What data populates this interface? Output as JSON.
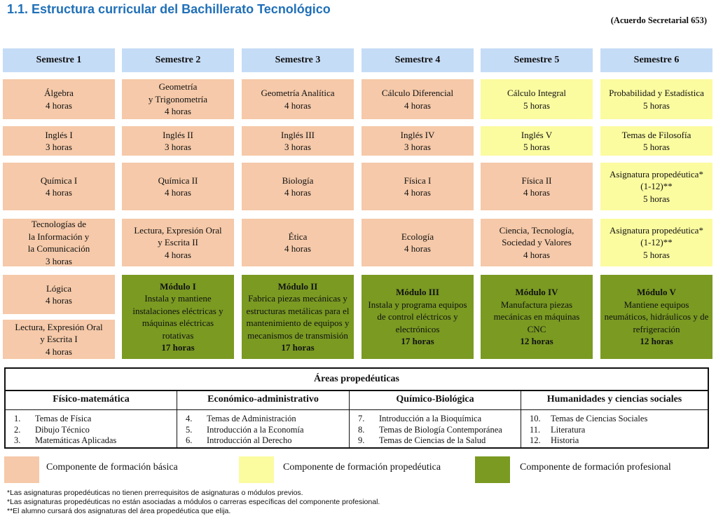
{
  "title": "1.1. Estructura curricular del Bachillerato Tecnológico",
  "agreement": "(Acuerdo Secretarial 653)",
  "colors": {
    "basic": "#f5c9a9",
    "propedeutic": "#fbfba0",
    "professional": "#7a9a22",
    "header": "#c5dcf6",
    "title": "#2070b8"
  },
  "semesters": [
    "Semestre 1",
    "Semestre 2",
    "Semestre 3",
    "Semestre 4",
    "Semestre 5",
    "Semestre 6"
  ],
  "courses": [
    [
      {
        "lines": [
          "Álgebra",
          "4 horas"
        ],
        "type": "basic"
      },
      {
        "lines": [
          "Inglés I",
          "3 horas"
        ],
        "type": "basic"
      },
      {
        "lines": [
          "Química I",
          "4 horas"
        ],
        "type": "basic"
      },
      {
        "lines": [
          "Tecnologías de",
          "la Información y",
          "la Comunicación",
          "3 horas"
        ],
        "type": "basic"
      },
      {
        "lines": [
          "Lógica",
          "4 horas"
        ],
        "type": "basic"
      },
      {
        "lines": [
          "Lectura, Expresión Oral",
          "y Escrita I",
          "4 horas"
        ],
        "type": "basic"
      }
    ],
    [
      {
        "lines": [
          "Geometría",
          "y Trigonometría",
          "4 horas"
        ],
        "type": "basic"
      },
      {
        "lines": [
          "Inglés II",
          "3 horas"
        ],
        "type": "basic"
      },
      {
        "lines": [
          "Química II",
          "4 horas"
        ],
        "type": "basic"
      },
      {
        "lines": [
          "Lectura, Expresión Oral",
          "y Escrita II",
          "4 horas"
        ],
        "type": "basic"
      }
    ],
    [
      {
        "lines": [
          "Geometría Analítica",
          "4 horas"
        ],
        "type": "basic"
      },
      {
        "lines": [
          "Inglés III",
          "3 horas"
        ],
        "type": "basic"
      },
      {
        "lines": [
          "Biología",
          "4 horas"
        ],
        "type": "basic"
      },
      {
        "lines": [
          "Ética",
          "4 horas"
        ],
        "type": "basic"
      }
    ],
    [
      {
        "lines": [
          "Cálculo Diferencial",
          "4 horas"
        ],
        "type": "basic"
      },
      {
        "lines": [
          "Inglés IV",
          "3 horas"
        ],
        "type": "basic"
      },
      {
        "lines": [
          "Física I",
          "4 horas"
        ],
        "type": "basic"
      },
      {
        "lines": [
          "Ecología",
          "4 horas"
        ],
        "type": "basic"
      }
    ],
    [
      {
        "lines": [
          "Cálculo Integral",
          "5 horas"
        ],
        "type": "prop"
      },
      {
        "lines": [
          "Inglés V",
          "5 horas"
        ],
        "type": "prop"
      },
      {
        "lines": [
          "Física II",
          "4 horas"
        ],
        "type": "basic"
      },
      {
        "lines": [
          "Ciencia, Tecnología,",
          "Sociedad y Valores",
          "4 horas"
        ],
        "type": "basic"
      }
    ],
    [
      {
        "lines": [
          "Probabilidad y Estadística",
          "5 horas"
        ],
        "type": "prop"
      },
      {
        "lines": [
          "Temas de Filosofía",
          "5 horas"
        ],
        "type": "prop"
      },
      {
        "lines": [
          "Asignatura propedéutica*",
          "(1-12)**",
          "5 horas"
        ],
        "type": "prop"
      },
      {
        "lines": [
          "Asignatura propedéutica*",
          "(1-12)**",
          "5 horas"
        ],
        "type": "prop"
      }
    ]
  ],
  "modules": [
    {
      "name": "Módulo I",
      "desc": [
        "Instala y mantiene",
        "instalaciones eléctricas y",
        "máquinas eléctricas",
        "rotativas"
      ],
      "hours": "17 horas"
    },
    {
      "name": "Módulo II",
      "desc": [
        "Fabrica piezas mecánicas y",
        "estructuras metálicas para el",
        "mantenimiento de equipos y",
        "mecanismos de transmisión"
      ],
      "hours": "17 horas"
    },
    {
      "name": "Módulo III",
      "desc": [
        "Instala y programa equipos",
        "de control eléctricos y",
        "electrónicos"
      ],
      "hours": "17 horas"
    },
    {
      "name": "Módulo IV",
      "desc": [
        "Manufactura piezas",
        "mecánicas en máquinas",
        "CNC"
      ],
      "hours": "12 horas"
    },
    {
      "name": "Módulo V",
      "desc": [
        "Mantiene equipos",
        "neumáticos, hidráulicos y de",
        "refrigeración"
      ],
      "hours": "12 horas"
    }
  ],
  "areas": {
    "title": "Áreas propedéuticas",
    "groups": [
      {
        "name": "Físico-matemática",
        "items": [
          {
            "num": "1.",
            "text": "Temas de Física"
          },
          {
            "num": "2.",
            "text": "Dibujo Técnico"
          },
          {
            "num": "3.",
            "text": "Matemáticas Aplicadas"
          }
        ]
      },
      {
        "name": "Económico-administrativo",
        "items": [
          {
            "num": "4.",
            "text": "Temas de Administración"
          },
          {
            "num": "5.",
            "text": "Introducción a la Economía"
          },
          {
            "num": "6.",
            "text": "Introducción al Derecho"
          }
        ]
      },
      {
        "name": "Químico-Biológica",
        "items": [
          {
            "num": "7.",
            "text": "Introducción a la Bioquímica"
          },
          {
            "num": "8.",
            "text": "Temas de Biología Contemporánea"
          },
          {
            "num": "9.",
            "text": "Temas de Ciencias de la Salud"
          }
        ]
      },
      {
        "name": "Humanidades y ciencias sociales",
        "items": [
          {
            "num": "10.",
            "text": "Temas de Ciencias Sociales"
          },
          {
            "num": "11.",
            "text": "Literatura"
          },
          {
            "num": "12.",
            "text": "Historia"
          }
        ]
      }
    ]
  },
  "legend": [
    {
      "label": "Componente de formación básica",
      "color": "#f5c9a9"
    },
    {
      "label": "Componente de formación propedéutica",
      "color": "#fbfba0"
    },
    {
      "label": "Componente de formación profesional",
      "color": "#7a9a22"
    }
  ],
  "notes": [
    "*Las asignaturas propedéuticas no tienen prerrequisitos de asignaturas o módulos previos.",
    "*Las asignaturas propedéuticas no están asociadas a módulos o carreras específicas del componente profesional.",
    "**El alumno cursará dos asignaturas del área propedéutica que elija."
  ]
}
